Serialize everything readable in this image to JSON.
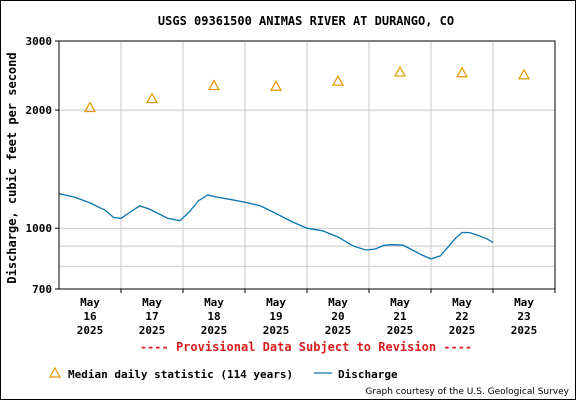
{
  "chart_data": {
    "type": "line",
    "title": "USGS 09361500 ANIMAS RIVER AT DURANGO, CO",
    "ylabel": "Discharge, cubic feet per second",
    "y_scale": "log",
    "ylim": [
      700,
      3000
    ],
    "y_ticks": [
      700,
      1000,
      2000,
      3000
    ],
    "y_tick_labels": [
      "700",
      "1000",
      "2000",
      "3000"
    ],
    "x_tick_labels": [
      [
        "May",
        "16",
        "2025"
      ],
      [
        "May",
        "17",
        "2025"
      ],
      [
        "May",
        "18",
        "2025"
      ],
      [
        "May",
        "19",
        "2025"
      ],
      [
        "May",
        "20",
        "2025"
      ],
      [
        "May",
        "21",
        "2025"
      ],
      [
        "May",
        "22",
        "2025"
      ],
      [
        "May",
        "23",
        "2025"
      ]
    ],
    "x_range_days": [
      0,
      8
    ],
    "grid": true,
    "provisional_text": "---- Provisional Data Subject to Revision ----",
    "credit": "Graph courtesy of the U.S. Geological Survey",
    "legend": [
      {
        "label": "Median daily statistic (114 years)",
        "marker": "triangle",
        "color": "#e69500"
      },
      {
        "label": "Discharge",
        "marker": "line",
        "color": "#0a74b0"
      }
    ],
    "median_series": {
      "name": "Median daily statistic (114 years)",
      "x": [
        0.5,
        1.5,
        2.5,
        3.5,
        4.5,
        5.5,
        6.5,
        7.5
      ],
      "y": [
        2030,
        2140,
        2310,
        2300,
        2370,
        2500,
        2490,
        2460
      ]
    },
    "discharge_series": {
      "name": "Discharge",
      "x": [
        0.0,
        0.25,
        0.5,
        0.75,
        0.88,
        1.0,
        1.15,
        1.3,
        1.45,
        1.6,
        1.75,
        1.95,
        2.1,
        2.25,
        2.4,
        2.55,
        2.75,
        3.0,
        3.25,
        3.5,
        3.75,
        4.0,
        4.25,
        4.5,
        4.75,
        4.95,
        5.1,
        5.25,
        5.4,
        5.55,
        5.7,
        5.85,
        6.0,
        6.15,
        6.3,
        6.4,
        6.5,
        6.62,
        6.75,
        6.9,
        7.0
      ],
      "y": [
        1225,
        1200,
        1160,
        1110,
        1065,
        1060,
        1100,
        1140,
        1120,
        1090,
        1060,
        1045,
        1100,
        1175,
        1215,
        1200,
        1185,
        1165,
        1140,
        1090,
        1040,
        1000,
        985,
        950,
        900,
        880,
        885,
        905,
        908,
        905,
        880,
        855,
        835,
        850,
        905,
        945,
        975,
        975,
        960,
        940,
        920
      ]
    }
  }
}
